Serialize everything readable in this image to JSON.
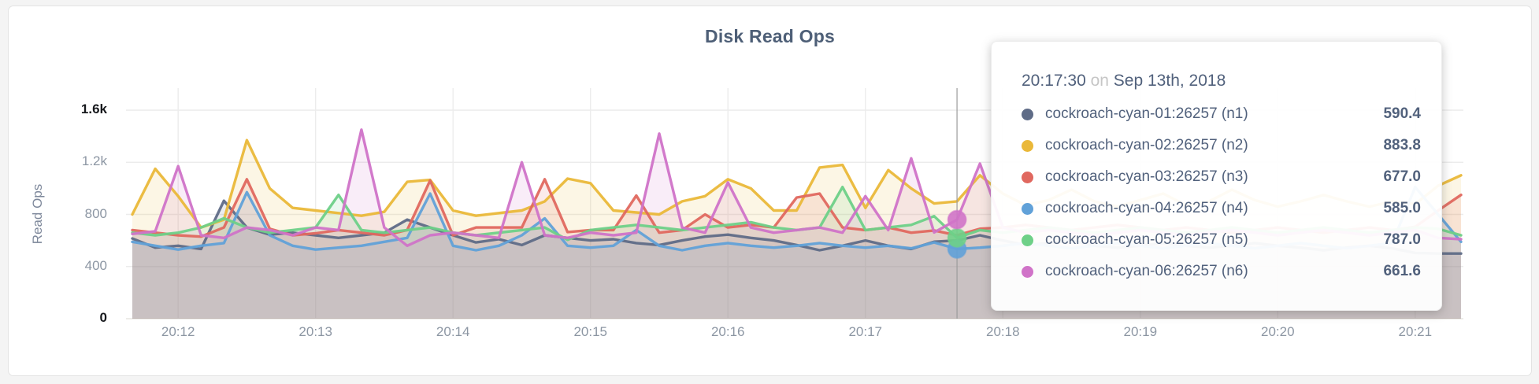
{
  "page": {
    "background": "#f4f4f4"
  },
  "chart": {
    "title": "Disk Read Ops",
    "y_axis": {
      "label": "Read Ops",
      "ticks": [
        {
          "label": "0",
          "value": 0,
          "emphasis": true
        },
        {
          "label": "400",
          "value": 400,
          "emphasis": false
        },
        {
          "label": "800",
          "value": 800,
          "emphasis": false
        },
        {
          "label": "1.2k",
          "value": 1200,
          "emphasis": false
        },
        {
          "label": "1.6k",
          "value": 1600,
          "emphasis": true
        }
      ]
    },
    "x_axis": {
      "tick_labels": [
        "20:12",
        "20:13",
        "20:14",
        "20:15",
        "20:16",
        "20:17",
        "20:18",
        "20:19",
        "20:20",
        "20:21"
      ],
      "first_tick_index": 2,
      "tick_every_points": 6
    }
  },
  "chart_data": {
    "type": "line",
    "area_fill": true,
    "title": "Disk Read Ops",
    "ylabel": "Read Ops",
    "ylim": [
      0,
      1780
    ],
    "x_start_time": "20:11:40",
    "x_interval_seconds": 10,
    "grid": true,
    "series": [
      {
        "name": "cockroach-cyan-01:26257 (n1)",
        "short": "n1",
        "color": "#5f6c87",
        "values": [
          615,
          545,
          560,
          535,
          905,
          700,
          645,
          660,
          640,
          620,
          640,
          660,
          760,
          700,
          640,
          585,
          610,
          565,
          640,
          620,
          600,
          610,
          580,
          565,
          600,
          630,
          645,
          620,
          600,
          565,
          525,
          560,
          600,
          560,
          535,
          590.4,
          600,
          640,
          600,
          565,
          580,
          600,
          560,
          545,
          560,
          580,
          560,
          545,
          560,
          580,
          560,
          545,
          525,
          545,
          560,
          540,
          505,
          500,
          500
        ]
      },
      {
        "name": "cockroach-cyan-02:26257 (n2)",
        "short": "n2",
        "color": "#eab839",
        "values": [
          800,
          1150,
          940,
          700,
          760,
          1370,
          1000,
          850,
          830,
          810,
          790,
          820,
          1050,
          1065,
          830,
          790,
          810,
          830,
          900,
          1075,
          1040,
          830,
          815,
          800,
          900,
          940,
          1070,
          1000,
          830,
          830,
          1160,
          1180,
          850,
          1140,
          1000,
          883.8,
          900,
          1100,
          960,
          870,
          910,
          990,
          900,
          860,
          910,
          960,
          870,
          900,
          990,
          910,
          860,
          900,
          950,
          900,
          860,
          900,
          880,
          1020,
          1100
        ]
      },
      {
        "name": "cockroach-cyan-03:26257 (n3)",
        "short": "n3",
        "color": "#e0685f",
        "values": [
          680,
          660,
          640,
          630,
          700,
          1070,
          690,
          640,
          655,
          680,
          660,
          640,
          680,
          1060,
          640,
          700,
          700,
          700,
          1070,
          665,
          680,
          680,
          945,
          660,
          680,
          800,
          700,
          720,
          700,
          930,
          960,
          700,
          680,
          700,
          660,
          677,
          640,
          690,
          700,
          720,
          700,
          680,
          700,
          720,
          700,
          680,
          700,
          680,
          660,
          680,
          700,
          680,
          660,
          680,
          700,
          680,
          705,
          830,
          950
        ]
      },
      {
        "name": "cockroach-cyan-04:26257 (n4)",
        "short": "n4",
        "color": "#61a1d8",
        "values": [
          590,
          560,
          530,
          560,
          580,
          970,
          640,
          560,
          530,
          545,
          560,
          590,
          620,
          960,
          560,
          525,
          560,
          640,
          770,
          560,
          545,
          560,
          680,
          560,
          525,
          560,
          580,
          560,
          545,
          560,
          580,
          560,
          545,
          560,
          540,
          585,
          535,
          545,
          560,
          580,
          560,
          540,
          560,
          580,
          560,
          540,
          560,
          580,
          560,
          540,
          560,
          580,
          560,
          540,
          560,
          580,
          1010,
          800,
          590
        ]
      },
      {
        "name": "cockroach-cyan-05:26257 (n5)",
        "short": "n5",
        "color": "#6ed088",
        "values": [
          660,
          640,
          660,
          700,
          770,
          700,
          660,
          680,
          700,
          950,
          680,
          660,
          680,
          700,
          660,
          640,
          660,
          680,
          700,
          605,
          680,
          700,
          720,
          700,
          680,
          700,
          720,
          740,
          700,
          680,
          700,
          1010,
          680,
          700,
          720,
          787,
          620,
          680,
          660,
          680,
          700,
          680,
          660,
          680,
          700,
          680,
          660,
          680,
          700,
          680,
          660,
          680,
          700,
          680,
          660,
          680,
          700,
          690,
          640
        ]
      },
      {
        "name": "cockroach-cyan-06:26257 (n6)",
        "short": "n6",
        "color": "#d073c8",
        "values": [
          650,
          670,
          1170,
          640,
          620,
          700,
          680,
          640,
          700,
          680,
          1450,
          700,
          560,
          640,
          660,
          640,
          620,
          1200,
          640,
          620,
          660,
          640,
          660,
          1420,
          700,
          660,
          1045,
          700,
          660,
          680,
          700,
          660,
          940,
          680,
          1230,
          661.6,
          760,
          1190,
          700,
          660,
          680,
          660,
          640,
          660,
          680,
          660,
          640,
          660,
          680,
          660,
          640,
          660,
          680,
          660,
          640,
          660,
          680,
          620,
          610
        ]
      }
    ]
  },
  "hover": {
    "guideline_index": 36,
    "dot_series": [
      "n4",
      "n5",
      "n6"
    ]
  },
  "tooltip": {
    "time": "20:17:30",
    "connector": "on",
    "date": "Sep 13th, 2018",
    "rows": [
      {
        "short": "n1",
        "color": "#5f6c87",
        "name": "cockroach-cyan-01:26257 (n1)",
        "value": "590.4"
      },
      {
        "short": "n2",
        "color": "#eab839",
        "name": "cockroach-cyan-02:26257 (n2)",
        "value": "883.8"
      },
      {
        "short": "n3",
        "color": "#e0685f",
        "name": "cockroach-cyan-03:26257 (n3)",
        "value": "677.0"
      },
      {
        "short": "n4",
        "color": "#61a1d8",
        "name": "cockroach-cyan-04:26257 (n4)",
        "value": "585.0"
      },
      {
        "short": "n5",
        "color": "#6ed088",
        "name": "cockroach-cyan-05:26257 (n5)",
        "value": "787.0"
      },
      {
        "short": "n6",
        "color": "#d073c8",
        "name": "cockroach-cyan-06:26257 (n6)",
        "value": "661.6"
      }
    ]
  },
  "colors": {
    "grid": "#ececec",
    "baseline": "#e7e5e0",
    "guideline": "#9b9b9b",
    "axis_text": "#8c96a3",
    "axis_text_end": "#17191d",
    "title_text": "#4e5f77"
  }
}
